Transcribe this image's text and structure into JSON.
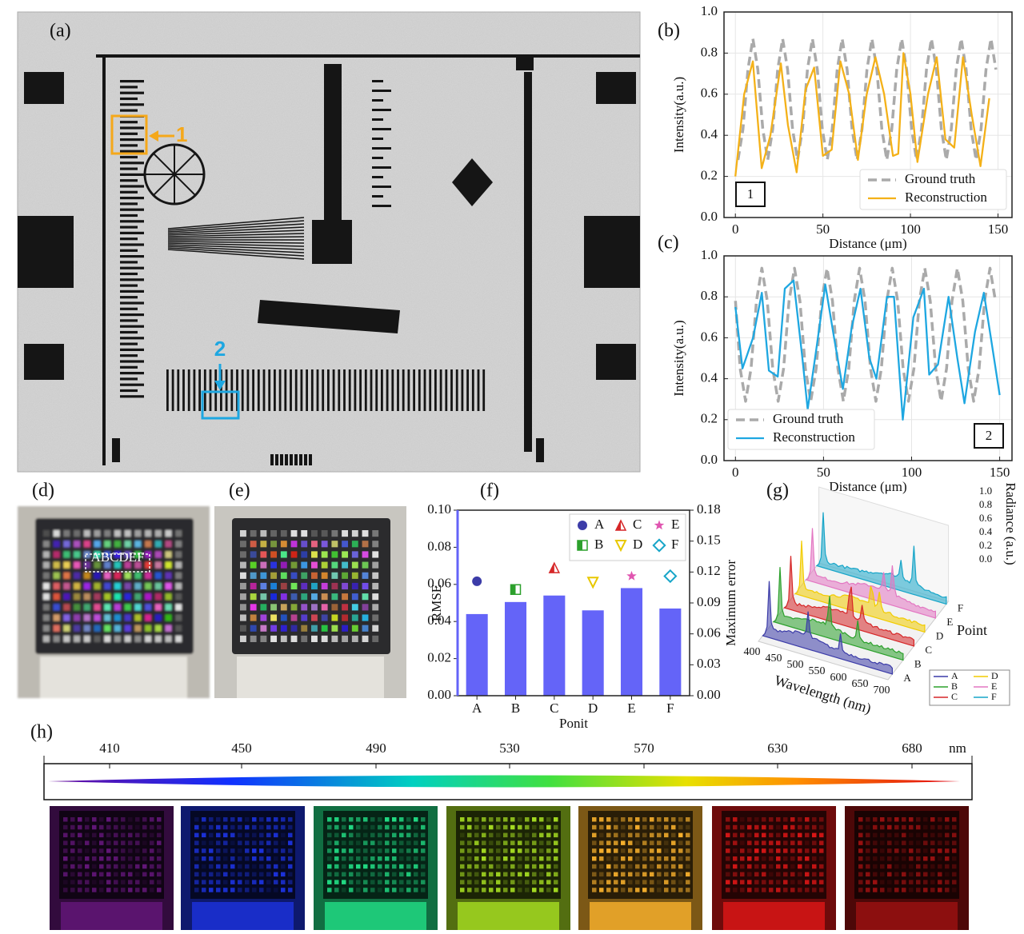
{
  "panel_a": {
    "label": "(a)",
    "roi_labels": [
      "1",
      "2"
    ]
  },
  "panel_d": {
    "label": "(d)",
    "text": "ABCDEF"
  },
  "panel_e": {
    "label": "(e)"
  },
  "panel_g": {
    "label": "(g)",
    "xlabel": "Wavelength (nm)",
    "ylabel": "Point",
    "zlabel": "Radiance (a.u.)",
    "xticks": [
      "400",
      "450",
      "500",
      "550",
      "600",
      "650",
      "700"
    ],
    "yticks": [
      "A",
      "B",
      "C",
      "D",
      "E",
      "F"
    ],
    "zticks": [
      "0.0",
      "0.2",
      "0.4",
      "0.6",
      "0.8",
      "1.0"
    ],
    "legend": [
      {
        "name": "A",
        "color": "#3c3ca8"
      },
      {
        "name": "B",
        "color": "#2ca02c"
      },
      {
        "name": "C",
        "color": "#d62728"
      },
      {
        "name": "D",
        "color": "#f2cc00"
      },
      {
        "name": "E",
        "color": "#e377c2"
      },
      {
        "name": "F",
        "color": "#17a5c8"
      }
    ]
  },
  "panel_h": {
    "label": "(h)",
    "ticks": [
      "410",
      "450",
      "490",
      "530",
      "570",
      "630",
      "680"
    ],
    "unit": "nm"
  },
  "chart_data": [
    {
      "type": "line",
      "label": "(b)",
      "xlabel": "Distance (μm)",
      "ylabel": "Intensity(a.u.)",
      "annotation": "1",
      "legend": "lower right",
      "grid": true,
      "xlim": [
        -6.5,
        158
      ],
      "ylim": [
        0,
        1.0
      ],
      "xticks": [
        0,
        50,
        100,
        150
      ],
      "yticks": [
        {
          "value": 0,
          "label": "0.0"
        },
        {
          "value": 0.2,
          "label": "0.2"
        },
        {
          "value": 0.4,
          "label": "0.4"
        },
        {
          "value": 0.6,
          "label": "0.6"
        },
        {
          "value": 0.8,
          "label": "0.8"
        },
        {
          "value": 1.0,
          "label": "1.0"
        }
      ],
      "series": [
        {
          "name": "Ground truth",
          "color": "#aaaaaa",
          "dash": true,
          "x": [
            1.5,
            4.33,
            7.17,
            10,
            12.83,
            15.67,
            18.5,
            21.33,
            24.17,
            27,
            29.83,
            32.67,
            35.5,
            38.33,
            41.17,
            44,
            46.83,
            49.67,
            52.5,
            55.33,
            58.17,
            61,
            63.83,
            66.67,
            69.5,
            72.33,
            75.17,
            78,
            80.83,
            83.67,
            86.5,
            89.33,
            92.17,
            95,
            97.83,
            100.67,
            103.5,
            106.33,
            109.17,
            112,
            114.83,
            117.67,
            120.5,
            123.33,
            126.17,
            129,
            131.83,
            134.67,
            137.5,
            140.33,
            143.17,
            146,
            148.83
          ],
          "values": [
            0.28,
            0.43,
            0.72,
            0.87,
            0.72,
            0.43,
            0.28,
            0.43,
            0.72,
            0.87,
            0.72,
            0.43,
            0.28,
            0.43,
            0.72,
            0.87,
            0.72,
            0.43,
            0.28,
            0.43,
            0.72,
            0.87,
            0.72,
            0.43,
            0.28,
            0.43,
            0.72,
            0.87,
            0.72,
            0.43,
            0.28,
            0.43,
            0.72,
            0.87,
            0.72,
            0.43,
            0.28,
            0.43,
            0.72,
            0.87,
            0.72,
            0.43,
            0.28,
            0.43,
            0.72,
            0.87,
            0.72,
            0.43,
            0.28,
            0.43,
            0.72,
            0.87,
            0.72
          ]
        },
        {
          "name": "Reconstruction",
          "color": "#f4b118",
          "x": [
            0,
            5,
            10,
            15,
            20,
            26,
            30,
            35,
            40,
            45,
            50,
            55,
            60,
            65,
            70,
            75,
            80,
            85,
            90,
            93,
            96,
            100,
            104,
            110,
            115,
            120,
            125,
            130,
            135,
            140,
            145
          ],
          "values": [
            0.2,
            0.6,
            0.76,
            0.24,
            0.4,
            0.75,
            0.45,
            0.22,
            0.62,
            0.73,
            0.3,
            0.33,
            0.76,
            0.6,
            0.28,
            0.6,
            0.78,
            0.6,
            0.3,
            0.31,
            0.8,
            0.6,
            0.27,
            0.6,
            0.78,
            0.38,
            0.34,
            0.78,
            0.5,
            0.25,
            0.58
          ]
        }
      ]
    },
    {
      "type": "line",
      "label": "(c)",
      "xlabel": "Distance (μm)",
      "ylabel": "Intensity(a.u.)",
      "annotation": "2",
      "legend": "lower left",
      "grid": true,
      "xlim": [
        -6.5,
        157
      ],
      "ylim": [
        0,
        1.0
      ],
      "xticks": [
        0,
        50,
        100,
        150
      ],
      "yticks": [
        {
          "value": 0,
          "label": "0.0"
        },
        {
          "value": 0.2,
          "label": "0.2"
        },
        {
          "value": 0.4,
          "label": "0.4"
        },
        {
          "value": 0.6,
          "label": "0.6"
        },
        {
          "value": 0.8,
          "label": "0.8"
        },
        {
          "value": 1.0,
          "label": "1.0"
        }
      ],
      "series": [
        {
          "name": "Ground truth",
          "color": "#aaaaaa",
          "dash": true,
          "x": [
            0,
            2.67,
            5.75,
            8.83,
            11.92,
            15,
            18.08,
            21.17,
            24.25,
            27.33,
            30.42,
            33.5,
            36.58,
            39.67,
            42.75,
            45.83,
            48.92,
            52,
            55.08,
            58.17,
            61.25,
            64.33,
            67.42,
            70.5,
            73.58,
            76.67,
            79.75,
            82.83,
            85.92,
            89,
            92.08,
            95.17,
            98.25,
            101.33,
            104.42,
            107.5,
            110.58,
            113.67,
            116.75,
            119.83,
            122.92,
            126,
            129.08,
            132.17,
            135.25,
            138.33,
            141.42,
            144.5,
            147.58
          ],
          "values": [
            0.78,
            0.45,
            0.29,
            0.45,
            0.78,
            0.94,
            0.78,
            0.45,
            0.29,
            0.45,
            0.78,
            0.94,
            0.78,
            0.45,
            0.29,
            0.45,
            0.78,
            0.94,
            0.78,
            0.45,
            0.29,
            0.45,
            0.78,
            0.94,
            0.78,
            0.45,
            0.29,
            0.45,
            0.78,
            0.94,
            0.78,
            0.45,
            0.29,
            0.45,
            0.78,
            0.94,
            0.78,
            0.45,
            0.29,
            0.45,
            0.78,
            0.94,
            0.78,
            0.45,
            0.29,
            0.45,
            0.78,
            0.94,
            0.78
          ]
        },
        {
          "name": "Reconstruction",
          "color": "#1ea7e1",
          "x": [
            0,
            4,
            10,
            15,
            19,
            24,
            28,
            33,
            38,
            41,
            46,
            51,
            56,
            61,
            66,
            71,
            76,
            80,
            86,
            90,
            95,
            101,
            107,
            110,
            115,
            121,
            126,
            130,
            136,
            141,
            145,
            150
          ],
          "values": [
            0.75,
            0.45,
            0.6,
            0.82,
            0.44,
            0.41,
            0.84,
            0.88,
            0.5,
            0.25,
            0.55,
            0.86,
            0.6,
            0.35,
            0.65,
            0.84,
            0.5,
            0.4,
            0.8,
            0.8,
            0.2,
            0.7,
            0.84,
            0.42,
            0.47,
            0.8,
            0.5,
            0.28,
            0.63,
            0.82,
            0.6,
            0.32
          ]
        }
      ]
    },
    {
      "type": "bar",
      "label": "(f)",
      "xlabel": "Ponit",
      "ylabel": "RMSE",
      "y2label": "Maximum error",
      "color": "#6464f8",
      "categories": [
        "A",
        "B",
        "C",
        "D",
        "E",
        "F"
      ],
      "values": [
        0.044,
        0.0505,
        0.054,
        0.046,
        0.058,
        0.047
      ],
      "ylim": [
        0,
        0.1
      ],
      "yticks": [
        {
          "value": 0,
          "label": "0.00"
        },
        {
          "value": 0.02,
          "label": "0.02"
        },
        {
          "value": 0.04,
          "label": "0.04"
        },
        {
          "value": 0.06,
          "label": "0.06"
        },
        {
          "value": 0.08,
          "label": "0.08"
        },
        {
          "value": 0.1,
          "label": "0.10"
        }
      ],
      "y2lim": [
        0,
        0.18
      ],
      "y2ticks": [
        {
          "value": 0,
          "label": "0.00"
        },
        {
          "value": 0.03,
          "label": "0.03"
        },
        {
          "value": 0.06,
          "label": "0.06"
        },
        {
          "value": 0.09,
          "label": "0.09"
        },
        {
          "value": 0.12,
          "label": "0.12"
        },
        {
          "value": 0.15,
          "label": "0.15"
        },
        {
          "value": 0.18,
          "label": "0.18"
        }
      ],
      "legend": "upper right",
      "series": [
        {
          "name": "A",
          "marker": "circle",
          "color": "#3c3ca8",
          "axis": "y2",
          "values": [
            0.111,
            null,
            null,
            null,
            null,
            null
          ]
        },
        {
          "name": "B",
          "marker": "half-square",
          "color": "#2ca02c",
          "axis": "y2",
          "values": [
            null,
            0.103,
            null,
            null,
            null,
            null
          ]
        },
        {
          "name": "C",
          "marker": "half-triangle",
          "color": "#d62728",
          "axis": "y2",
          "values": [
            null,
            null,
            0.124,
            null,
            null,
            null
          ]
        },
        {
          "name": "D",
          "marker": "down-triangle",
          "color": "#e8c800",
          "axis": "y2",
          "values": [
            null,
            null,
            null,
            0.11,
            null,
            null
          ]
        },
        {
          "name": "E",
          "marker": "star",
          "color": "#e055b0",
          "axis": "y2",
          "values": [
            null,
            null,
            null,
            null,
            0.116,
            null
          ]
        },
        {
          "name": "F",
          "marker": "diamond",
          "color": "#17a5c8",
          "axis": "y2",
          "values": [
            null,
            null,
            null,
            null,
            null,
            0.116
          ]
        }
      ]
    }
  ]
}
